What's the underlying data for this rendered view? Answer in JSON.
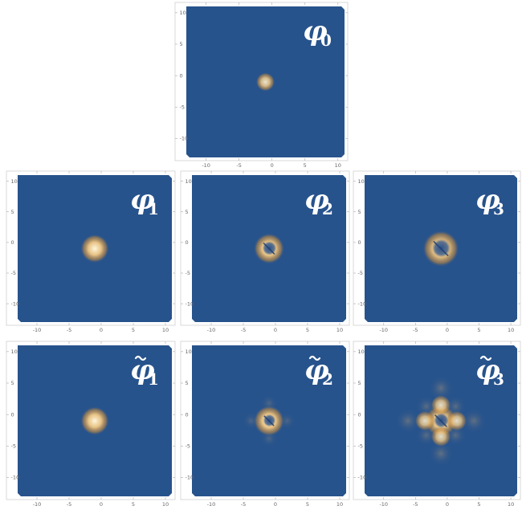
{
  "colors": {
    "background": "#27538c",
    "hot_center": "#fff6dc",
    "hot_mid": "#f1c884",
    "hot_edge": "#c88a3a",
    "frame": "#cfcfcf",
    "tick_label": "#666666"
  },
  "chart_data": [
    {
      "type": "heatmap",
      "label_symbol": "φ",
      "label_subscript": "0",
      "label_tilde": false,
      "xlim": [
        -13,
        11
      ],
      "ylim": [
        -13,
        11
      ],
      "xticks": [
        "-10",
        "-5",
        "0",
        "5",
        "10"
      ],
      "yticks": [
        "10",
        "5",
        "0",
        "-5",
        "-10"
      ],
      "features": [
        {
          "shape": "blob",
          "x": -1,
          "y": -1,
          "radius": 0.9,
          "intensity": 0.9,
          "hole": 0.0
        }
      ]
    },
    {
      "type": "heatmap",
      "label_symbol": "φ",
      "label_subscript": "1",
      "label_tilde": false,
      "xlim": [
        -13,
        11
      ],
      "ylim": [
        -13,
        11
      ],
      "xticks": [
        "-10",
        "-5",
        "0",
        "5",
        "10"
      ],
      "yticks": [
        "10",
        "5",
        "0",
        "-5",
        "-10"
      ],
      "features": [
        {
          "shape": "blob",
          "x": -1,
          "y": -1,
          "radius": 1.4,
          "intensity": 1.0,
          "hole": 0.0
        }
      ]
    },
    {
      "type": "heatmap",
      "label_symbol": "φ",
      "label_subscript": "2",
      "label_tilde": false,
      "xlim": [
        -13,
        11
      ],
      "ylim": [
        -13,
        11
      ],
      "xticks": [
        "-10",
        "-5",
        "0",
        "5",
        "10"
      ],
      "yticks": [
        "10",
        "5",
        "0",
        "-5",
        "-10"
      ],
      "features": [
        {
          "shape": "ring",
          "x": -1,
          "y": -1,
          "radius": 1.5,
          "intensity": 1.0,
          "hole": 0.45
        }
      ]
    },
    {
      "type": "heatmap",
      "label_symbol": "φ",
      "label_subscript": "3",
      "label_tilde": false,
      "xlim": [
        -13,
        11
      ],
      "ylim": [
        -13,
        11
      ],
      "xticks": [
        "-10",
        "-5",
        "0",
        "5",
        "10"
      ],
      "yticks": [
        "10",
        "5",
        "0",
        "-5",
        "-10"
      ],
      "features": [
        {
          "shape": "ring",
          "x": -1,
          "y": -1,
          "radius": 1.8,
          "intensity": 1.0,
          "hole": 0.5
        }
      ]
    },
    {
      "type": "heatmap",
      "label_symbol": "φ",
      "label_subscript": "1",
      "label_tilde": true,
      "xlim": [
        -13,
        11
      ],
      "ylim": [
        -13,
        11
      ],
      "xticks": [
        "-10",
        "-5",
        "0",
        "5",
        "10"
      ],
      "yticks": [
        "10",
        "5",
        "0",
        "-5",
        "-10"
      ],
      "features": [
        {
          "shape": "blob",
          "x": -1,
          "y": -1,
          "radius": 1.4,
          "intensity": 1.0,
          "hole": 0.0
        }
      ]
    },
    {
      "type": "heatmap",
      "label_symbol": "φ",
      "label_subscript": "2",
      "label_tilde": true,
      "xlim": [
        -13,
        11
      ],
      "ylim": [
        -13,
        11
      ],
      "xticks": [
        "-10",
        "-5",
        "0",
        "5",
        "10"
      ],
      "yticks": [
        "10",
        "5",
        "0",
        "-5",
        "-10"
      ],
      "features": [
        {
          "shape": "ring",
          "x": -1,
          "y": -1,
          "radius": 1.5,
          "intensity": 1.0,
          "hole": 0.4
        },
        {
          "shape": "faint",
          "x": -1,
          "y": 1.8,
          "radius": 0.8,
          "intensity": 0.3,
          "hole": 0.0
        },
        {
          "shape": "faint",
          "x": -1,
          "y": -3.8,
          "radius": 0.8,
          "intensity": 0.3,
          "hole": 0.0
        },
        {
          "shape": "faint",
          "x": 1.8,
          "y": -1,
          "radius": 0.8,
          "intensity": 0.3,
          "hole": 0.0
        },
        {
          "shape": "faint",
          "x": -3.8,
          "y": -1,
          "radius": 0.8,
          "intensity": 0.3,
          "hole": 0.0
        }
      ]
    },
    {
      "type": "heatmap",
      "label_symbol": "φ",
      "label_subscript": "3",
      "label_tilde": true,
      "xlim": [
        -13,
        11
      ],
      "ylim": [
        -13,
        11
      ],
      "xticks": [
        "-10",
        "-5",
        "0",
        "5",
        "10"
      ],
      "yticks": [
        "10",
        "5",
        "0",
        "-5",
        "-10"
      ],
      "features": [
        {
          "shape": "ring",
          "x": -1,
          "y": -1,
          "radius": 1.6,
          "intensity": 1.0,
          "hole": 0.45
        },
        {
          "shape": "blob",
          "x": -1,
          "y": 1.5,
          "radius": 1.0,
          "intensity": 0.85,
          "hole": 0.0
        },
        {
          "shape": "blob",
          "x": -1,
          "y": -3.5,
          "radius": 1.0,
          "intensity": 0.85,
          "hole": 0.0
        },
        {
          "shape": "blob",
          "x": 1.5,
          "y": -1,
          "radius": 1.0,
          "intensity": 0.85,
          "hole": 0.0
        },
        {
          "shape": "blob",
          "x": -3.5,
          "y": -1,
          "radius": 1.0,
          "intensity": 0.85,
          "hole": 0.0
        },
        {
          "shape": "faint",
          "x": -1,
          "y": 4.2,
          "radius": 1.2,
          "intensity": 0.45,
          "hole": 0.0
        },
        {
          "shape": "faint",
          "x": -1,
          "y": -6.2,
          "radius": 1.2,
          "intensity": 0.45,
          "hole": 0.0
        },
        {
          "shape": "faint",
          "x": 4.2,
          "y": -1,
          "radius": 1.2,
          "intensity": 0.45,
          "hole": 0.0
        },
        {
          "shape": "faint",
          "x": -6.2,
          "y": -1,
          "radius": 1.2,
          "intensity": 0.45,
          "hole": 0.0
        },
        {
          "shape": "faint",
          "x": 1.3,
          "y": 1.3,
          "radius": 1.0,
          "intensity": 0.4,
          "hole": 0.0
        },
        {
          "shape": "faint",
          "x": -3.3,
          "y": 1.3,
          "radius": 1.0,
          "intensity": 0.4,
          "hole": 0.0
        },
        {
          "shape": "faint",
          "x": 1.3,
          "y": -3.3,
          "radius": 1.0,
          "intensity": 0.4,
          "hole": 0.0
        },
        {
          "shape": "faint",
          "x": -3.3,
          "y": -3.3,
          "radius": 1.0,
          "intensity": 0.4,
          "hole": 0.0
        }
      ]
    }
  ]
}
